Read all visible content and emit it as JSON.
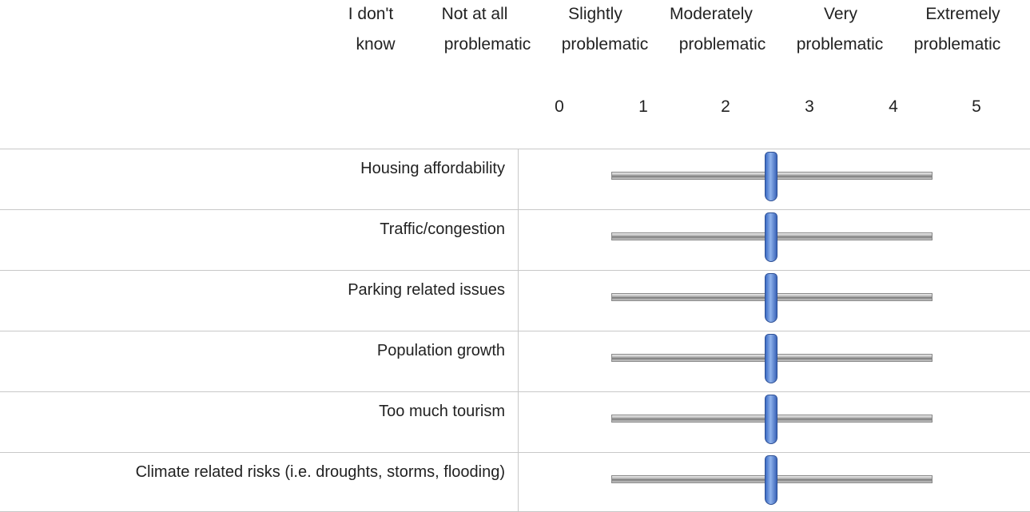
{
  "header": {
    "columns": [
      {
        "line1": "I don't",
        "line2": "know"
      },
      {
        "line1": "Not at all",
        "line2": "problematic"
      },
      {
        "line1": "Slightly",
        "line2": "problematic"
      },
      {
        "line1": "Moderately",
        "line2": "problematic"
      },
      {
        "line1": "Very",
        "line2": "problematic"
      },
      {
        "line1": "Extremely",
        "line2": "problematic"
      }
    ],
    "scale": [
      0,
      1,
      2,
      3,
      4,
      5
    ]
  },
  "rows": [
    "Housing affordability",
    "Traffic/congestion",
    "Parking related issues",
    "Population growth",
    "Too much tourism",
    "Climate related risks (i.e. droughts, storms, flooding)"
  ]
}
